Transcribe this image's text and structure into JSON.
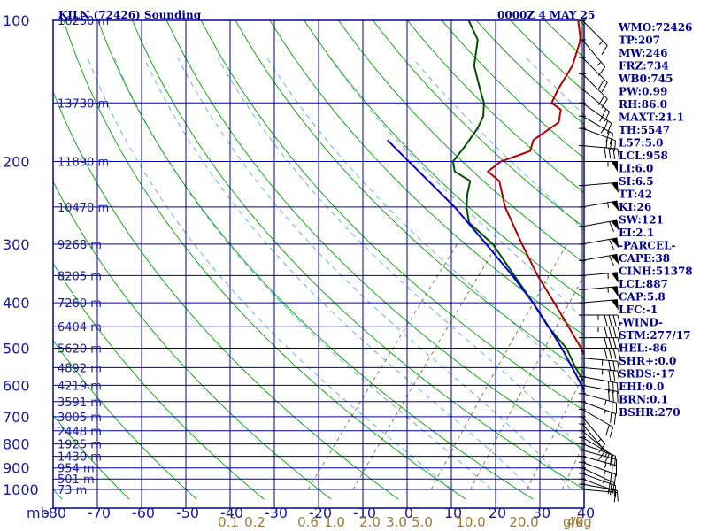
{
  "title": "KILN (72426) Sounding",
  "datetime": "0000Z  4 MAY 25",
  "pressure_unit": "mb",
  "mixing_ratio_unit": "g/kg",
  "colors": {
    "frame": "#0000a0",
    "temperature": "#b00000",
    "dewpoint": "#005000",
    "parcel": "#0000c8",
    "dry_adiabat": "#00a000",
    "moist_adiabat": "#5aaad8",
    "mixing_ratio": "#7a6a3a",
    "text": "#00008b",
    "wind_barb": "#000000"
  },
  "stats": [
    "WMO:72426",
    "TP:207",
    "MW:246",
    "FRZ:734",
    "WB0:745",
    "PW:0.99",
    "RH:86.0",
    "MAXT:21.1",
    "TH:5547",
    "L57:5.0",
    "LCL:958",
    "LI:6.0",
    "SI:6.5",
    "TT:42",
    "KI:26",
    "SW:121",
    "EI:2.1",
    "-PARCEL-",
    "CAPE:38",
    "CINH:51378",
    "LCL:887",
    "CAP:5.8",
    "LFC:-1",
    "-WIND-",
    "STM:277/17",
    "HEL:-86",
    "SHR+:0.0",
    "SRDS:-17",
    "EHI:0.0",
    "BRN:0.1",
    "BSHR:270"
  ],
  "chart_data": {
    "type": "line",
    "title": "KILN (72426) Sounding",
    "y_scale": "log-pressure",
    "ylim": [
      1000,
      100
    ],
    "xlim": [
      -80,
      0
    ],
    "pressure_ticks": [
      100,
      200,
      300,
      400,
      500,
      600,
      700,
      800,
      900,
      1000
    ],
    "temperature_ticks": [
      "-80",
      "-70",
      "-60",
      "-50",
      "-40",
      "-30",
      "-20",
      "-10",
      "0",
      "10",
      "20",
      "30",
      "40"
    ],
    "mixing_ratio_labels": [
      "0.1",
      "0.2",
      "0.6",
      "1.0",
      "2.0",
      "3.0",
      "5.0",
      "10.0",
      "20.0",
      "40.0"
    ],
    "heights": [
      {
        "p": 100,
        "label": "16250 m"
      },
      {
        "p": 150,
        "label": "13730 m"
      },
      {
        "p": 200,
        "label": "11890 m"
      },
      {
        "p": 250,
        "label": "10470 m"
      },
      {
        "p": 300,
        "label": "9268 m"
      },
      {
        "p": 350,
        "label": "8205 m"
      },
      {
        "p": 400,
        "label": "7260 m"
      },
      {
        "p": 450,
        "label": "6404 m"
      },
      {
        "p": 500,
        "label": "5620 m"
      },
      {
        "p": 550,
        "label": "4892 m"
      },
      {
        "p": 600,
        "label": "4219 m"
      },
      {
        "p": 650,
        "label": "3591 m"
      },
      {
        "p": 700,
        "label": "3005 m"
      },
      {
        "p": 750,
        "label": "2448 m"
      },
      {
        "p": 800,
        "label": "1925 m"
      },
      {
        "p": 850,
        "label": "1430 m"
      },
      {
        "p": 900,
        "label": "954 m"
      },
      {
        "p": 950,
        "label": "501 m"
      },
      {
        "p": 1000,
        "label": "73 m"
      }
    ],
    "series": [
      {
        "key": "temperature",
        "points": [
          [
            1000,
            10.4
          ],
          [
            980,
            9.6
          ],
          [
            965,
            11.5
          ],
          [
            950,
            12.0
          ],
          [
            930,
            10.6
          ],
          [
            900,
            9.2
          ],
          [
            850,
            6.0
          ],
          [
            800,
            1.5
          ],
          [
            750,
            -2.3
          ],
          [
            700,
            -5.2
          ],
          [
            650,
            -8.4
          ],
          [
            600,
            -11.8
          ],
          [
            550,
            -15.6
          ],
          [
            500,
            -19.6
          ],
          [
            450,
            -24.4
          ],
          [
            400,
            -29.8
          ],
          [
            350,
            -36.0
          ],
          [
            300,
            -42.6
          ],
          [
            250,
            -50.2
          ],
          [
            220,
            -54.6
          ],
          [
            210,
            -57.6
          ],
          [
            200,
            -57.0
          ],
          [
            190,
            -54.0
          ],
          [
            180,
            -55.0
          ],
          [
            165,
            -53.6
          ],
          [
            155,
            -55.0
          ],
          [
            150,
            -57.3
          ],
          [
            140,
            -58.2
          ],
          [
            125,
            -59.2
          ],
          [
            110,
            -61.5
          ],
          [
            100,
            -64.5
          ]
        ]
      },
      {
        "key": "dewpoint",
        "points": [
          [
            1000,
            9.4
          ],
          [
            980,
            8.6
          ],
          [
            965,
            9.0
          ],
          [
            950,
            10.0
          ],
          [
            930,
            8.2
          ],
          [
            900,
            5.2
          ],
          [
            850,
            3.5
          ],
          [
            800,
            -0.5
          ],
          [
            750,
            -3.5
          ],
          [
            700,
            -6.8
          ],
          [
            650,
            -10.5
          ],
          [
            600,
            -13.8
          ],
          [
            550,
            -17.8
          ],
          [
            500,
            -21.8
          ],
          [
            450,
            -27.5
          ],
          [
            400,
            -33.0
          ],
          [
            350,
            -39.5
          ],
          [
            300,
            -47.0
          ],
          [
            270,
            -53.5
          ],
          [
            250,
            -56.0
          ],
          [
            235,
            -57.6
          ],
          [
            220,
            -59.0
          ],
          [
            210,
            -62.6
          ],
          [
            200,
            -64.2
          ],
          [
            185,
            -64.5
          ],
          [
            170,
            -65.0
          ],
          [
            160,
            -65.8
          ],
          [
            150,
            -67.5
          ],
          [
            140,
            -70.0
          ],
          [
            125,
            -74.0
          ],
          [
            110,
            -77.0
          ],
          [
            100,
            -81.0
          ]
        ]
      },
      {
        "key": "parcel",
        "points": [
          [
            960,
            13.8
          ],
          [
            900,
            9.0
          ],
          [
            850,
            4.0
          ],
          [
            800,
            -1.0
          ],
          [
            750,
            -4.5
          ],
          [
            700,
            -7.8
          ],
          [
            650,
            -11.0
          ],
          [
            600,
            -14.5
          ],
          [
            550,
            -18.3
          ],
          [
            500,
            -22.5
          ],
          [
            450,
            -27.4
          ],
          [
            400,
            -33.0
          ],
          [
            350,
            -39.8
          ],
          [
            300,
            -48.0
          ],
          [
            250,
            -57.8
          ],
          [
            180,
            -77.0
          ]
        ]
      }
    ],
    "wind_barbs": [
      {
        "p": 1000,
        "dir": 275,
        "spd": 5
      },
      {
        "p": 975,
        "dir": 280,
        "spd": 10
      },
      {
        "p": 950,
        "dir": 290,
        "spd": 15
      },
      {
        "p": 925,
        "dir": 290,
        "spd": 20
      },
      {
        "p": 900,
        "dir": 295,
        "spd": 25
      },
      {
        "p": 875,
        "dir": 290,
        "spd": 25
      },
      {
        "p": 850,
        "dir": 285,
        "spd": 25
      },
      {
        "p": 825,
        "dir": 285,
        "spd": 20
      },
      {
        "p": 800,
        "dir": 290,
        "spd": 20
      },
      {
        "p": 775,
        "dir": 300,
        "spd": 15
      },
      {
        "p": 750,
        "dir": 310,
        "spd": 10
      },
      {
        "p": 725,
        "dir": 320,
        "spd": 10
      },
      {
        "p": 700,
        "dir": 320,
        "spd": 15
      },
      {
        "p": 675,
        "dir": 300,
        "spd": 20
      },
      {
        "p": 650,
        "dir": 290,
        "spd": 25
      },
      {
        "p": 625,
        "dir": 285,
        "spd": 25
      },
      {
        "p": 600,
        "dir": 280,
        "spd": 30
      },
      {
        "p": 575,
        "dir": 280,
        "spd": 30
      },
      {
        "p": 550,
        "dir": 275,
        "spd": 35
      },
      {
        "p": 525,
        "dir": 275,
        "spd": 35
      },
      {
        "p": 500,
        "dir": 270,
        "spd": 40
      },
      {
        "p": 475,
        "dir": 270,
        "spd": 40
      },
      {
        "p": 450,
        "dir": 270,
        "spd": 45
      },
      {
        "p": 425,
        "dir": 270,
        "spd": 45
      },
      {
        "p": 400,
        "dir": 265,
        "spd": 50
      },
      {
        "p": 375,
        "dir": 265,
        "spd": 55
      },
      {
        "p": 350,
        "dir": 265,
        "spd": 55
      },
      {
        "p": 325,
        "dir": 260,
        "spd": 60
      },
      {
        "p": 300,
        "dir": 260,
        "spd": 60
      },
      {
        "p": 275,
        "dir": 260,
        "spd": 60
      },
      {
        "p": 250,
        "dir": 260,
        "spd": 55
      },
      {
        "p": 225,
        "dir": 265,
        "spd": 50
      },
      {
        "p": 200,
        "dir": 270,
        "spd": 55
      },
      {
        "p": 185,
        "dir": 275,
        "spd": 40
      },
      {
        "p": 170,
        "dir": 290,
        "spd": 30
      },
      {
        "p": 160,
        "dir": 300,
        "spd": 25
      },
      {
        "p": 150,
        "dir": 305,
        "spd": 25
      },
      {
        "p": 140,
        "dir": 310,
        "spd": 20
      },
      {
        "p": 130,
        "dir": 315,
        "spd": 20
      },
      {
        "p": 120,
        "dir": 315,
        "spd": 20
      },
      {
        "p": 110,
        "dir": 320,
        "spd": 15
      },
      {
        "p": 100,
        "dir": 315,
        "spd": 15
      }
    ]
  }
}
